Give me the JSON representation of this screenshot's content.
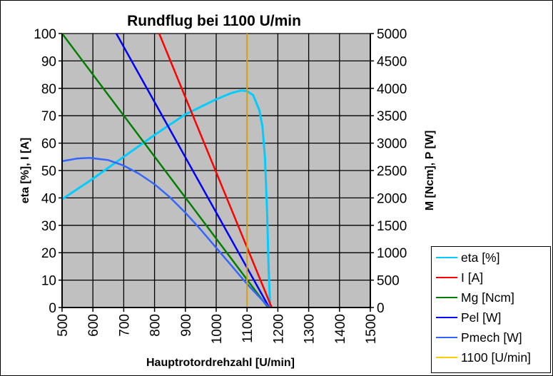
{
  "chart_data": {
    "type": "line",
    "title": "Rundflug bei 1100 U/min",
    "xlabel": "Hauptrotordrehzahl [U/min]",
    "ylabel_left": "eta [%], I [A]",
    "ylabel_right": "M [Ncm], P [W]",
    "xlim": [
      500,
      1500
    ],
    "ylim_left": [
      0,
      100
    ],
    "ylim_right": [
      0,
      5000
    ],
    "x_ticks": [
      "500",
      "600",
      "700",
      "800",
      "900",
      "1000",
      "1100",
      "1200",
      "1300",
      "1400",
      "1500"
    ],
    "y_ticks_left": [
      "0",
      "10",
      "20",
      "30",
      "40",
      "50",
      "60",
      "70",
      "80",
      "90",
      "100"
    ],
    "y_ticks_right": [
      "0",
      "500",
      "1000",
      "1500",
      "2000",
      "2500",
      "3000",
      "3500",
      "4000",
      "4500",
      "5000"
    ],
    "grid": true,
    "plot_background": "#c0c0c0",
    "legend_position": "bottom-right outside",
    "series": [
      {
        "name": "eta [%]",
        "axis": "left",
        "color": "#00ccff",
        "x": [
          500,
          600,
          700,
          800,
          900,
          1000,
          1050,
          1080,
          1100,
          1120,
          1140,
          1150,
          1158,
          1165,
          1170,
          1175
        ],
        "y": [
          39.5,
          47,
          55,
          63,
          70.5,
          76,
          78.3,
          79.2,
          79,
          77.5,
          72,
          66,
          55,
          35,
          15,
          0
        ]
      },
      {
        "name": "I [A]",
        "axis": "left",
        "color": "#ff0000",
        "x": [
          815,
          1180
        ],
        "y": [
          100,
          0
        ]
      },
      {
        "name": "Mg [Ncm]",
        "axis": "right",
        "color": "#008000",
        "x": [
          500,
          1168
        ],
        "y": [
          5000,
          0
        ]
      },
      {
        "name": "Pel [W]",
        "axis": "right",
        "color": "#0000ff",
        "x": [
          676,
          1172
        ],
        "y": [
          5000,
          0
        ]
      },
      {
        "name": "Pmech [W]",
        "axis": "right",
        "color": "#3366ff",
        "x": [
          500,
          550,
          590,
          650,
          700,
          750,
          800,
          850,
          900,
          950,
          1000,
          1050,
          1100,
          1140,
          1172
        ],
        "y": [
          2670,
          2720,
          2730,
          2690,
          2590,
          2440,
          2250,
          2010,
          1730,
          1420,
          1090,
          760,
          430,
          190,
          0
        ]
      },
      {
        "name": "1100 [U/min]",
        "axis": "left",
        "color": "#d4a017",
        "x": [
          1100,
          1100
        ],
        "y": [
          0,
          100
        ]
      }
    ]
  },
  "legend": {
    "items": [
      {
        "label": "eta [%]",
        "color": "#00ccff"
      },
      {
        "label": "I [A]",
        "color": "#ff0000"
      },
      {
        "label": "Mg [Ncm]",
        "color": "#008000"
      },
      {
        "label": "Pel [W]",
        "color": "#0000ff"
      },
      {
        "label": "Pmech [W]",
        "color": "#3366ff"
      },
      {
        "label": "1100 [U/min]",
        "color": "#ffcc00"
      }
    ]
  }
}
